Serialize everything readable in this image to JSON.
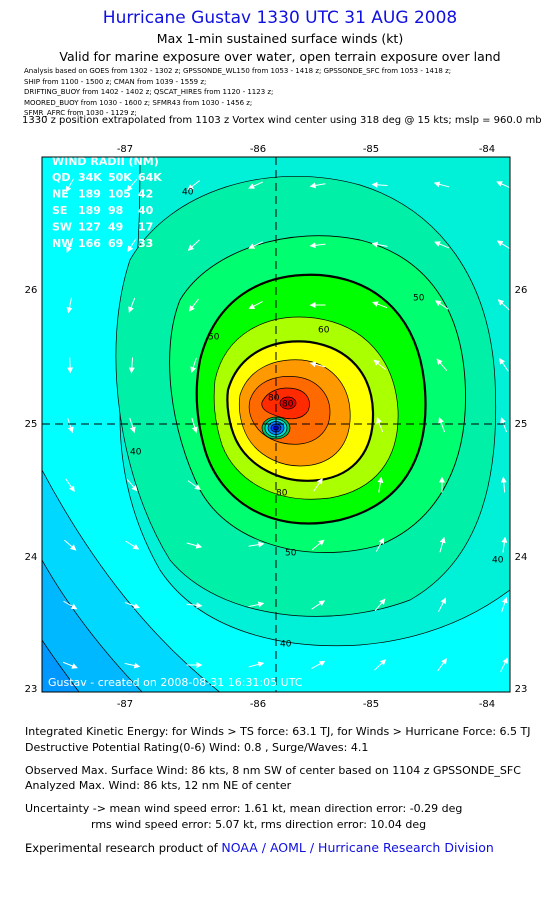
{
  "header": {
    "title": "Hurricane Gustav 1330 UTC 31 AUG 2008",
    "subtitle": "Max 1-min sustained surface winds (kt)",
    "validity": "Valid for marine exposure over water, open terrain exposure over land",
    "analysis_lines": [
      "Analysis based on  GOES from 1302 - 1302 z;  GPSSONDE_WL150 from 1053 - 1418 z;  GPSSONDE_SFC from 1053 - 1418 z;",
      "SHIP from 1100 - 1500 z;  CMAN from 1039 - 1559 z;",
      "DRIFTING_BUOY from 1402 - 1402 z;  QSCAT_HIRES from 1120 - 1123 z;",
      "MOORED_BUOY from 1030 - 1600 z;  SFMR43 from 1030 - 1456 z;",
      "SFMR_AFRC from 1030 - 1129 z;"
    ],
    "position_note": "1330 z position extrapolated from 1103 z Vortex wind center using 318 deg @ 15 kts; mslp = 960.0 mb"
  },
  "map": {
    "lon_labels": [
      "-87",
      "-86",
      "-85",
      "-84"
    ],
    "lat_labels": [
      "26",
      "25",
      "24",
      "23"
    ],
    "wind_radii": {
      "title": "WIND RADII (NM)",
      "rows": [
        [
          "QD",
          "34K",
          "50K",
          "64K"
        ],
        [
          "NE",
          "189",
          "105",
          "42"
        ],
        [
          "SE",
          "189",
          "98",
          "40"
        ],
        [
          "SW",
          "127",
          "49",
          "17"
        ],
        [
          "NW",
          "166",
          "69",
          "33"
        ]
      ]
    },
    "contour_labels": [
      "40",
      "40",
      "40",
      "40",
      "50",
      "50",
      "50",
      "60",
      "80",
      "80",
      "80"
    ],
    "credit": "Gustav - created on 2008-08-31 16:31:05 UTC"
  },
  "footer": {
    "ike": "Integrated Kinetic Energy:  for Winds > TS force: 63.1 TJ,  for Winds > Hurricane Force: 6.5 TJ",
    "rating": "Destructive Potential Rating(0-6)   Wind: 0.8 , Surge/Waves: 4.1",
    "observed": "Observed Max. Surface Wind: 86 kts, 8 nm SW of center based on 1104 z GPSSONDE_SFC",
    "analyzed": "Analyzed Max. Wind: 86 kts, 12 nm NE of center",
    "uncertainty_1": "Uncertainty -> mean wind speed error: 1.61 kt,   mean direction error:  -0.29 deg",
    "uncertainty_2": "rms wind speed error: 5.07 kt,   rms direction error: 10.04 deg",
    "product_prefix": "Experimental research product of",
    "product_org": "NOAA / AOML / Hurricane Research Division"
  }
}
